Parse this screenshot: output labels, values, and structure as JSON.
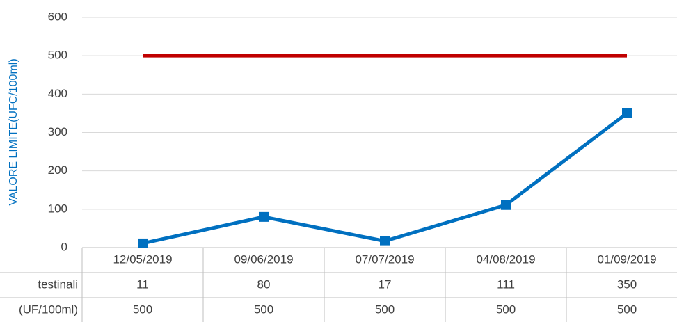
{
  "chart_data": {
    "type": "line",
    "y_label": "VALORE LIMITE(UFC/100ml)",
    "categories": [
      "12/05/2019",
      "09/06/2019",
      "07/07/2019",
      "04/08/2019",
      "01/09/2019"
    ],
    "series": [
      {
        "name": "testinali",
        "color": "#0070c0",
        "marker": "square",
        "values": [
          11,
          80,
          17,
          111,
          350
        ]
      },
      {
        "name": "(UF/100ml)",
        "color": "#c00000",
        "values": [
          500,
          500,
          500,
          500,
          500
        ]
      }
    ],
    "ylim": [
      0,
      600
    ],
    "yticks": [
      0,
      100,
      200,
      300,
      400,
      500,
      600
    ],
    "grid": true
  }
}
